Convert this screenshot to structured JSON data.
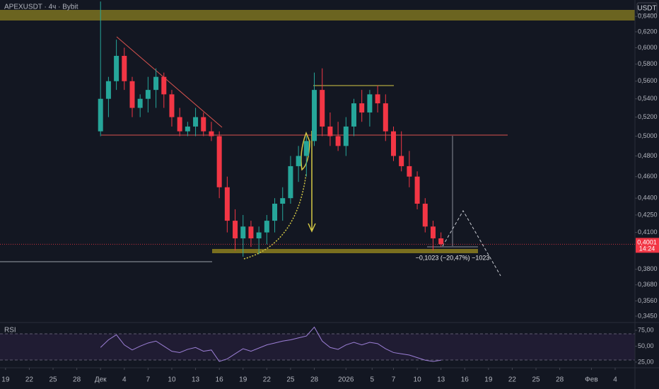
{
  "chart_data": [
    {
      "type": "candlestick",
      "title": "APEXUSDT · 4ч · Bybit",
      "currency": "USDT",
      "log": true,
      "up_color": "#26a69a",
      "down_color": "#f23645",
      "x": [
        12,
        13,
        14,
        15,
        16,
        17,
        18,
        19,
        20,
        21,
        22,
        23,
        24,
        25,
        26,
        27,
        28,
        29,
        30,
        31,
        32,
        33,
        34,
        35,
        36,
        37,
        38,
        39,
        40,
        41,
        42,
        43,
        44,
        45,
        46,
        47,
        48,
        49,
        50,
        51,
        52,
        53,
        54,
        55
      ],
      "open": [
        0.505,
        0.54,
        0.56,
        0.59,
        0.56,
        0.53,
        0.54,
        0.55,
        0.565,
        0.545,
        0.52,
        0.505,
        0.51,
        0.52,
        0.505,
        0.5,
        0.45,
        0.42,
        0.405,
        0.415,
        0.405,
        0.41,
        0.42,
        0.435,
        0.44,
        0.47,
        0.48,
        0.495,
        0.55,
        0.51,
        0.5,
        0.49,
        0.51,
        0.535,
        0.525,
        0.545,
        0.535,
        0.505,
        0.48,
        0.47,
        0.46,
        0.435,
        0.415,
        0.405
      ],
      "high": [
        0.66,
        0.565,
        0.61,
        0.6,
        0.565,
        0.545,
        0.565,
        0.575,
        0.57,
        0.55,
        0.53,
        0.515,
        0.53,
        0.525,
        0.515,
        0.505,
        0.46,
        0.43,
        0.425,
        0.42,
        0.415,
        0.425,
        0.44,
        0.45,
        0.48,
        0.49,
        0.5,
        0.57,
        0.575,
        0.525,
        0.515,
        0.52,
        0.54,
        0.55,
        0.55,
        0.555,
        0.545,
        0.51,
        0.505,
        0.485,
        0.465,
        0.44,
        0.42,
        0.41
      ],
      "low": [
        0.5,
        0.52,
        0.55,
        0.55,
        0.52,
        0.52,
        0.525,
        0.53,
        0.53,
        0.51,
        0.5,
        0.5,
        0.5,
        0.5,
        0.495,
        0.44,
        0.41,
        0.395,
        0.39,
        0.398,
        0.392,
        0.4,
        0.41,
        0.42,
        0.435,
        0.455,
        0.46,
        0.49,
        0.5,
        0.49,
        0.485,
        0.48,
        0.5,
        0.515,
        0.51,
        0.525,
        0.495,
        0.475,
        0.465,
        0.45,
        0.43,
        0.41,
        0.395,
        0.398
      ],
      "close": [
        0.54,
        0.56,
        0.59,
        0.56,
        0.53,
        0.54,
        0.55,
        0.565,
        0.545,
        0.52,
        0.505,
        0.51,
        0.52,
        0.505,
        0.5,
        0.45,
        0.42,
        0.405,
        0.415,
        0.405,
        0.41,
        0.42,
        0.435,
        0.44,
        0.47,
        0.48,
        0.495,
        0.55,
        0.51,
        0.5,
        0.49,
        0.51,
        0.535,
        0.525,
        0.545,
        0.535,
        0.505,
        0.48,
        0.47,
        0.46,
        0.435,
        0.415,
        0.405,
        0.4001
      ],
      "xlim": [
        -0.7,
        79.5
      ],
      "xticks": [
        {
          "value": 0,
          "label": "19"
        },
        {
          "value": 3,
          "label": "22"
        },
        {
          "value": 6,
          "label": "25"
        },
        {
          "value": 9,
          "label": "28"
        },
        {
          "value": 12,
          "label": "Дек"
        },
        {
          "value": 15,
          "label": "4"
        },
        {
          "value": 18,
          "label": "7"
        },
        {
          "value": 21,
          "label": "10"
        },
        {
          "value": 24,
          "label": "13"
        },
        {
          "value": 27,
          "label": "16"
        },
        {
          "value": 30,
          "label": "19"
        },
        {
          "value": 33,
          "label": "22"
        },
        {
          "value": 36,
          "label": "25"
        },
        {
          "value": 39,
          "label": "28"
        },
        {
          "value": 43,
          "label": "2026"
        },
        {
          "value": 46.3,
          "label": "5"
        },
        {
          "value": 49,
          "label": "7"
        },
        {
          "value": 52,
          "label": "10"
        },
        {
          "value": 55,
          "label": "13"
        },
        {
          "value": 58,
          "label": "16"
        },
        {
          "value": 61,
          "label": "19"
        },
        {
          "value": 64,
          "label": "22"
        },
        {
          "value": 67,
          "label": "25"
        },
        {
          "value": 70,
          "label": "28"
        },
        {
          "value": 74,
          "label": "Фев"
        },
        {
          "value": 77,
          "label": "4"
        }
      ],
      "ylim": [
        0.341,
        0.662
      ],
      "yticks": [
        {
          "value": 0.64,
          "label": "0,6400"
        },
        {
          "value": 0.62,
          "label": "0,6200"
        },
        {
          "value": 0.6,
          "label": "0,6000"
        },
        {
          "value": 0.58,
          "label": "0,5800"
        },
        {
          "value": 0.56,
          "label": "0,5600"
        },
        {
          "value": 0.54,
          "label": "0,5400"
        },
        {
          "value": 0.52,
          "label": "0,5200"
        },
        {
          "value": 0.5,
          "label": "0,5000"
        },
        {
          "value": 0.48,
          "label": "0,4800"
        },
        {
          "value": 0.46,
          "label": "0,4600"
        },
        {
          "value": 0.44,
          "label": "0,4400"
        },
        {
          "value": 0.425,
          "label": "0,4250"
        },
        {
          "value": 0.41,
          "label": "0,4100"
        },
        {
          "value": 0.38,
          "label": "0,3800"
        },
        {
          "value": 0.368,
          "label": "0,3680"
        },
        {
          "value": 0.356,
          "label": "0,3560"
        },
        {
          "value": 0.345,
          "label": "0,3450"
        }
      ],
      "last_price": {
        "value": 0.4001,
        "label": "0,4001"
      },
      "countdown": "14:24",
      "measure_label": "−0,1023 (−20,47%) −1023"
    },
    {
      "type": "line",
      "title": "RSI",
      "color": "#9c7fd6",
      "x": [
        12,
        13,
        14,
        15,
        16,
        17,
        18,
        19,
        20,
        21,
        22,
        23,
        24,
        25,
        26,
        27,
        28,
        29,
        30,
        31,
        32,
        33,
        34,
        35,
        36,
        37,
        38,
        39,
        40,
        41,
        42,
        43,
        44,
        45,
        46,
        47,
        48,
        49,
        50,
        51,
        52,
        53,
        54,
        55
      ],
      "values": [
        48,
        60,
        68,
        52,
        44,
        50,
        55,
        58,
        50,
        42,
        40,
        45,
        48,
        42,
        44,
        26,
        30,
        38,
        46,
        42,
        47,
        52,
        55,
        58,
        60,
        63,
        66,
        80,
        58,
        48,
        45,
        52,
        56,
        52,
        56,
        54,
        46,
        40,
        38,
        36,
        32,
        28,
        26,
        28
      ],
      "ylim": [
        16,
        85
      ],
      "yticks": [
        {
          "value": 75,
          "label": "75,00"
        },
        {
          "value": 50,
          "label": "50,00"
        },
        {
          "value": 25,
          "label": "25,00"
        }
      ]
    }
  ]
}
